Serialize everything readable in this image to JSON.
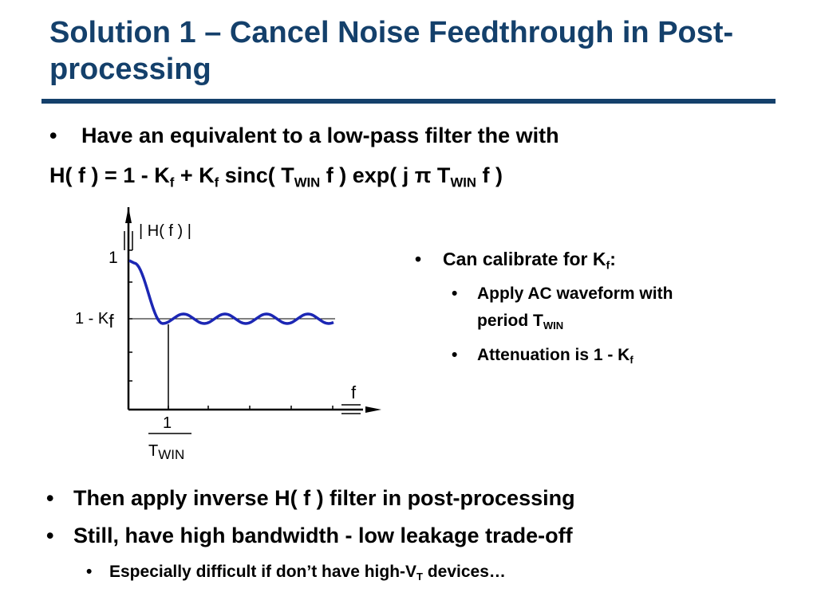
{
  "title": "Solution 1 – Cancel Noise Feedthrough in Post-processing",
  "bullet_char": "•",
  "top": {
    "bullet1": "Have an equivalent to a low-pass filter the with",
    "equation": {
      "p1": "H( f ) = 1 - K",
      "s1": "f",
      "p2": " + K",
      "s2": "f",
      "p3": " sinc( T",
      "s3": "WIN",
      "p4": " f ) exp( j π T",
      "s4": "WIN",
      "p5": " f )"
    }
  },
  "figure": {
    "ylabel": "| H( f ) |",
    "y_tick_1": "1",
    "y_tick_level_main": "1 - K",
    "y_tick_level_sub": "f",
    "x_axis_label": "f",
    "x_tick_num": "1",
    "x_tick_den_main": "T",
    "x_tick_den_sub": "WIN"
  },
  "right": {
    "bullet1_main": "Can calibrate for K",
    "bullet1_sub": "f",
    "bullet1_tail": ":",
    "sub1_line1": "Apply AC waveform with",
    "sub1_line2_main": "period T",
    "sub1_line2_sub": "WIN",
    "sub2_main": "Attenuation is 1 - K",
    "sub2_sub": "f"
  },
  "bottom": {
    "bullet1": "Then apply inverse H( f ) filter in post-processing",
    "bullet2": "Still, have high bandwidth - low leakage trade-off",
    "sub1_main": "Especially difficult if don’t have high-V",
    "sub1_sub": "T",
    "sub1_tail": " devices…"
  }
}
